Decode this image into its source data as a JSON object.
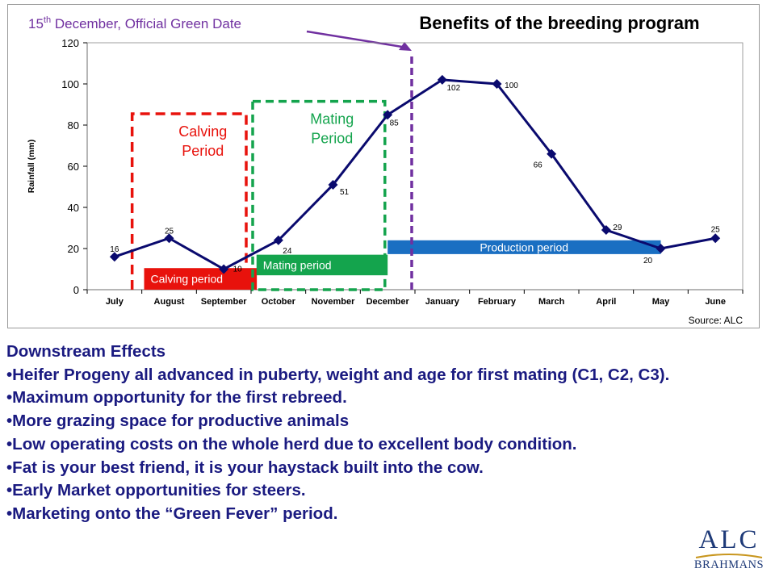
{
  "title": "Benefits of the breeding program",
  "annotation": {
    "day": "15",
    "day_suffix": "th",
    "rest": " December,  Official Green Date"
  },
  "source": "Source: ALC",
  "colors": {
    "series": "#0a0a6e",
    "calving": "#e8120c",
    "mating": "#14a44d",
    "production": "#1a6fc2",
    "green_date": "#7030a0",
    "text": "#1a1a80"
  },
  "chart_data": {
    "type": "line",
    "title": "Benefits of the breeding program",
    "ylabel": "Rainfall (mm)",
    "xlabel": "",
    "ylim": [
      0,
      120
    ],
    "yticks": [
      "0",
      "20",
      "40",
      "60",
      "80",
      "100",
      "120"
    ],
    "categories": [
      "July",
      "August",
      "September",
      "October",
      "November",
      "December",
      "January",
      "February",
      "March",
      "April",
      "May",
      "June"
    ],
    "series": [
      {
        "values": [
          16,
          25,
          10,
          24,
          51,
          85,
          102,
          100,
          66,
          29,
          20,
          25
        ]
      }
    ],
    "data_labels": [
      "16",
      "25",
      "10",
      "24",
      "51",
      "85",
      "102",
      "100",
      "66",
      "29",
      "20",
      "25"
    ],
    "grid": false,
    "periods": [
      {
        "label": "Calving Period",
        "style": "dashed-box",
        "color": "calving",
        "from": "August",
        "to": "September"
      },
      {
        "label": "Mating Period",
        "style": "dashed-box",
        "color": "mating",
        "from": "October",
        "to": "December"
      }
    ],
    "bars": [
      {
        "label": "Calving period",
        "color": "calving"
      },
      {
        "label": "Mating period",
        "color": "mating"
      },
      {
        "label": "Production period",
        "color": "production"
      }
    ],
    "marker_month": "December"
  },
  "effects": {
    "heading": "Downstream Effects",
    "items": [
      "•Heifer Progeny all advanced in puberty, weight and age for first mating (C1, C2, C3).",
      "•Maximum opportunity for the first rebreed.",
      "•More grazing space for productive animals",
      "•Low operating costs on the whole herd due to excellent body condition.",
      "•Fat is your best friend, it is your haystack built into the cow.",
      "•Early Market opportunities for steers.",
      "•Marketing onto the “Green Fever” period."
    ]
  },
  "logo": {
    "top": "ALC",
    "bottom": "BRAHMANS"
  }
}
